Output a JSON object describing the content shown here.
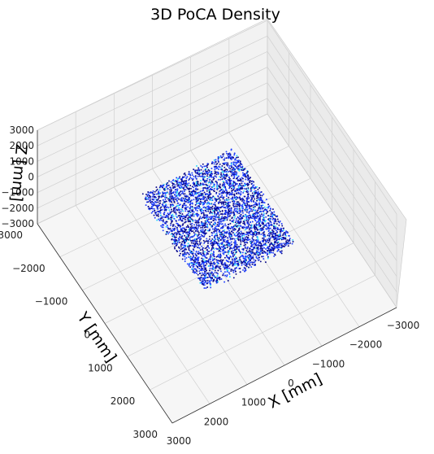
{
  "chart_data": {
    "type": "scatter",
    "projection": "3d",
    "title": "3D PoCA Density",
    "xlabel": "X [mm]",
    "ylabel": "Y [mm]",
    "zlabel": "Z [mm]",
    "xlim": [
      -3000,
      3000
    ],
    "ylim": [
      -3000,
      3000
    ],
    "zlim": [
      -3000,
      3000
    ],
    "xticks": [
      "3000",
      "2000",
      "1000",
      "0",
      "−1000",
      "−2000",
      "−3000"
    ],
    "yticks": [
      "−3000",
      "−2000",
      "−1000",
      "0",
      "1000",
      "2000",
      "3000"
    ],
    "zticks": [
      "3000",
      "2000",
      "1000",
      "0",
      "−1000",
      "−2000",
      "−3000"
    ],
    "grid": true,
    "point_cloud": {
      "x_range": [
        -1200,
        1200
      ],
      "y_range": [
        -1400,
        1400
      ],
      "z_range": [
        -300,
        300
      ],
      "color_low": "#0a0a8c",
      "color_mid": "#1f3fff",
      "color_high": "#28d8ff"
    }
  }
}
